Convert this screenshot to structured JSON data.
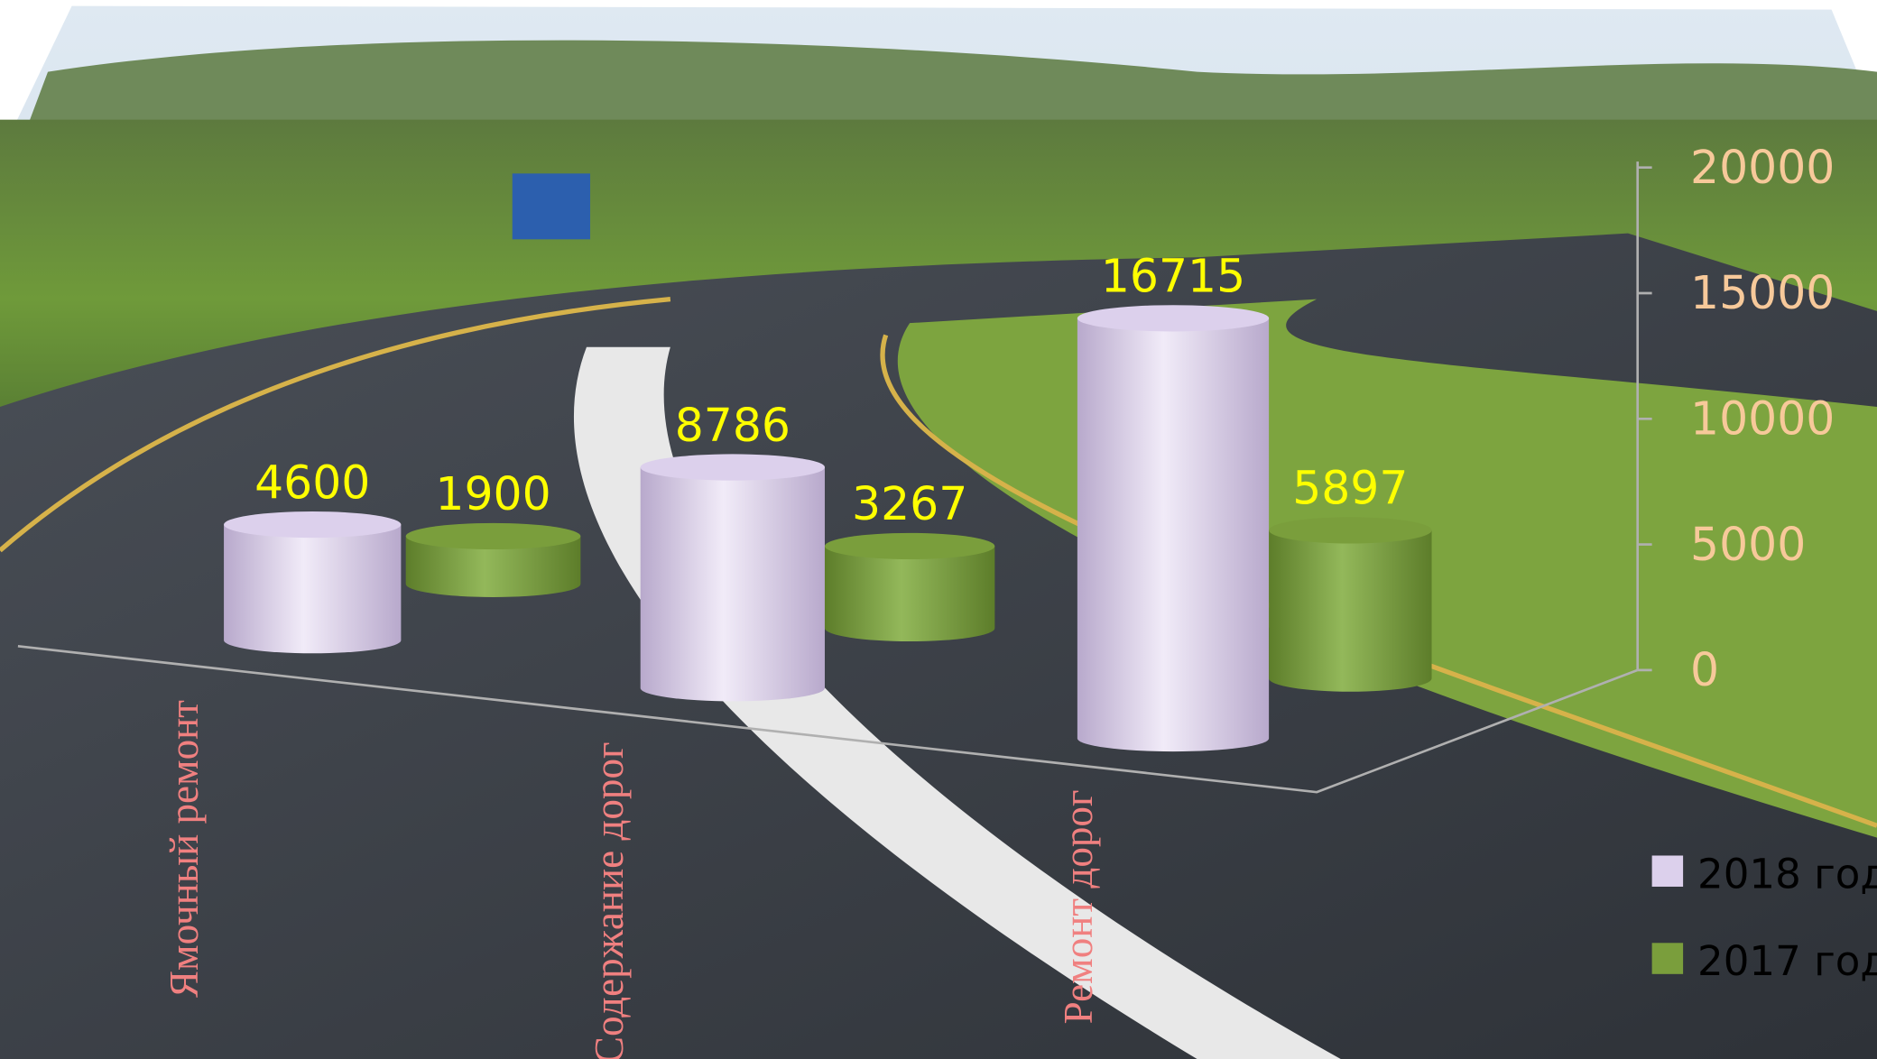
{
  "chart_data": {
    "type": "bar3d-cylinder",
    "categories": [
      "Ямочный ремонт",
      "Содержание дорог",
      "Ремонт дорог"
    ],
    "series": [
      {
        "name": "2018 год",
        "color": "#dcd0ec",
        "values": [
          4600,
          8786,
          16715
        ]
      },
      {
        "name": "2017 год",
        "color": "#7a9e3c",
        "values": [
          1900,
          3267,
          5897
        ]
      }
    ],
    "ylim": [
      0,
      20000
    ],
    "yticks": [
      0,
      5000,
      10000,
      15000,
      20000
    ],
    "legend": "right"
  }
}
